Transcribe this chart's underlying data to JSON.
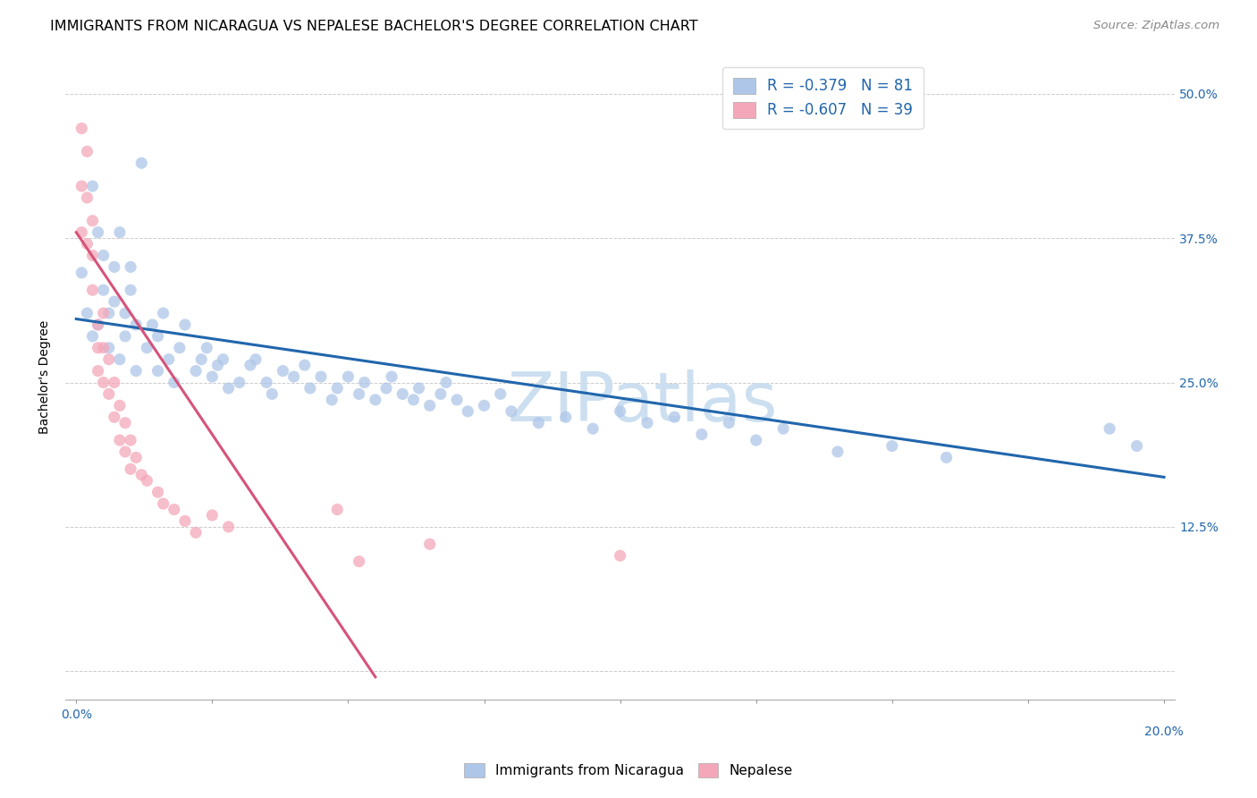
{
  "title": "IMMIGRANTS FROM NICARAGUA VS NEPALESE BACHELOR'S DEGREE CORRELATION CHART",
  "source": "Source: ZipAtlas.com",
  "ylabel": "Bachelor's Degree",
  "watermark": "ZIPatlas",
  "legend_entries": [
    {
      "label": "Immigrants from Nicaragua",
      "R": "-0.379",
      "N": "81",
      "color": "#aec6e8",
      "line_color": "#2166ac"
    },
    {
      "label": "Nepalese",
      "R": "-0.607",
      "N": "39",
      "color": "#f4a7b9",
      "line_color": "#d6537a"
    }
  ],
  "xlim": [
    -0.002,
    0.202
  ],
  "ylim": [
    -0.025,
    0.535
  ],
  "blue_scatter_x": [
    0.001,
    0.002,
    0.003,
    0.003,
    0.004,
    0.004,
    0.005,
    0.005,
    0.006,
    0.006,
    0.007,
    0.007,
    0.008,
    0.008,
    0.009,
    0.009,
    0.01,
    0.01,
    0.011,
    0.011,
    0.012,
    0.013,
    0.014,
    0.015,
    0.015,
    0.016,
    0.017,
    0.018,
    0.019,
    0.02,
    0.022,
    0.023,
    0.024,
    0.025,
    0.026,
    0.027,
    0.028,
    0.03,
    0.032,
    0.033,
    0.035,
    0.036,
    0.038,
    0.04,
    0.042,
    0.043,
    0.045,
    0.047,
    0.048,
    0.05,
    0.052,
    0.053,
    0.055,
    0.057,
    0.058,
    0.06,
    0.062,
    0.063,
    0.065,
    0.067,
    0.068,
    0.07,
    0.072,
    0.075,
    0.078,
    0.08,
    0.085,
    0.09,
    0.095,
    0.1,
    0.105,
    0.11,
    0.115,
    0.12,
    0.125,
    0.13,
    0.14,
    0.15,
    0.16,
    0.19,
    0.195
  ],
  "blue_scatter_y": [
    0.345,
    0.31,
    0.29,
    0.42,
    0.38,
    0.3,
    0.33,
    0.36,
    0.28,
    0.31,
    0.32,
    0.35,
    0.38,
    0.27,
    0.29,
    0.31,
    0.33,
    0.35,
    0.3,
    0.26,
    0.44,
    0.28,
    0.3,
    0.26,
    0.29,
    0.31,
    0.27,
    0.25,
    0.28,
    0.3,
    0.26,
    0.27,
    0.28,
    0.255,
    0.265,
    0.27,
    0.245,
    0.25,
    0.265,
    0.27,
    0.25,
    0.24,
    0.26,
    0.255,
    0.265,
    0.245,
    0.255,
    0.235,
    0.245,
    0.255,
    0.24,
    0.25,
    0.235,
    0.245,
    0.255,
    0.24,
    0.235,
    0.245,
    0.23,
    0.24,
    0.25,
    0.235,
    0.225,
    0.23,
    0.24,
    0.225,
    0.215,
    0.22,
    0.21,
    0.225,
    0.215,
    0.22,
    0.205,
    0.215,
    0.2,
    0.21,
    0.19,
    0.195,
    0.185,
    0.21,
    0.195
  ],
  "pink_scatter_x": [
    0.001,
    0.001,
    0.001,
    0.002,
    0.002,
    0.002,
    0.003,
    0.003,
    0.003,
    0.004,
    0.004,
    0.004,
    0.005,
    0.005,
    0.005,
    0.006,
    0.006,
    0.007,
    0.007,
    0.008,
    0.008,
    0.009,
    0.009,
    0.01,
    0.01,
    0.011,
    0.012,
    0.013,
    0.015,
    0.016,
    0.018,
    0.02,
    0.022,
    0.025,
    0.028,
    0.048,
    0.052,
    0.065,
    0.1
  ],
  "pink_scatter_y": [
    0.47,
    0.42,
    0.38,
    0.45,
    0.41,
    0.37,
    0.39,
    0.36,
    0.33,
    0.3,
    0.28,
    0.26,
    0.31,
    0.28,
    0.25,
    0.27,
    0.24,
    0.25,
    0.22,
    0.23,
    0.2,
    0.215,
    0.19,
    0.2,
    0.175,
    0.185,
    0.17,
    0.165,
    0.155,
    0.145,
    0.14,
    0.13,
    0.12,
    0.135,
    0.125,
    0.14,
    0.095,
    0.11,
    0.1
  ],
  "blue_line": {
    "x0": 0.0,
    "y0": 0.305,
    "x1": 0.2,
    "y1": 0.168
  },
  "pink_line": {
    "x0": 0.0,
    "y0": 0.38,
    "x1": 0.055,
    "y1": -0.005
  },
  "grid_color": "#cccccc",
  "bg_color": "#ffffff",
  "scatter_size": 90,
  "scatter_alpha": 0.75,
  "title_fontsize": 11.5,
  "source_fontsize": 9.5,
  "axis_label_fontsize": 10,
  "tick_fontsize": 10,
  "watermark_fontsize": 55,
  "watermark_color": "#ccdff0",
  "x_tick_positions": [
    0.0,
    0.025,
    0.05,
    0.075,
    0.1,
    0.125,
    0.15,
    0.175,
    0.2
  ],
  "y_tick_positions": [
    0.0,
    0.125,
    0.25,
    0.375,
    0.5
  ]
}
